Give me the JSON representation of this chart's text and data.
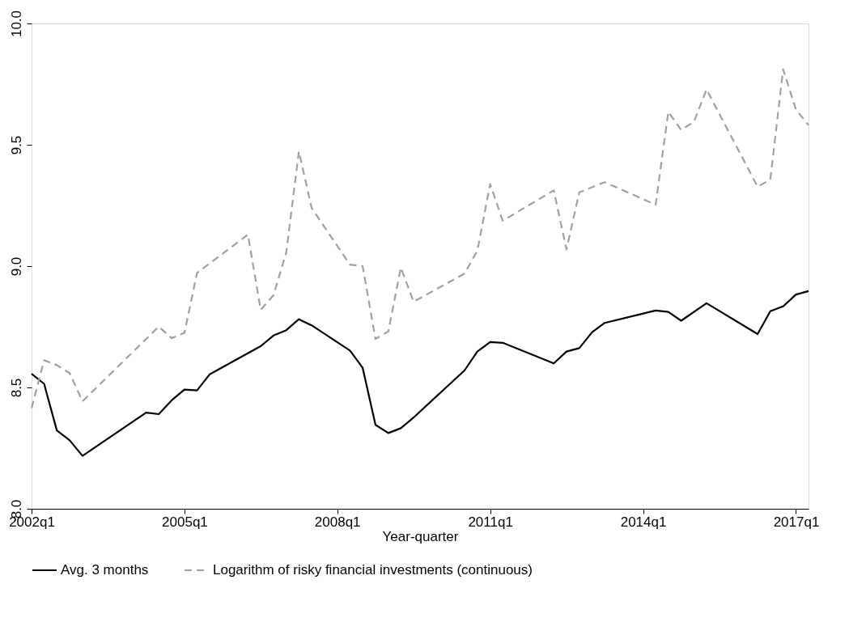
{
  "chart_data": {
    "type": "line",
    "xlabel": "Year-quarter",
    "xlim": [
      "2002-01",
      "2017-04"
    ],
    "xticks": [
      {
        "value": "2002-01",
        "label": "2002q1"
      },
      {
        "value": "2005-01",
        "label": "2005q1"
      },
      {
        "value": "2008-01",
        "label": "2008q1"
      },
      {
        "value": "2011-01",
        "label": "2011q1"
      },
      {
        "value": "2014-01",
        "label": "2014q1"
      },
      {
        "value": "2017-01",
        "label": "2017q1"
      }
    ],
    "ylim": [
      8,
      10
    ],
    "yticks": [
      {
        "value": 8,
        "label": "8.0"
      },
      {
        "value": 8.5,
        "label": "8.5"
      },
      {
        "value": 9,
        "label": "9.0"
      },
      {
        "value": 9.5,
        "label": "9.5"
      },
      {
        "value": 10,
        "label": "10.0"
      }
    ],
    "grid": false,
    "legend": "bottom",
    "marker": "none",
    "series": [
      {
        "name": "Avg. 3 months",
        "color": "#000000",
        "line_style": "solid",
        "x": [
          "2002-01",
          "2002-04",
          "2002-07",
          "2002-10",
          "2003-01",
          "2004-04",
          "2004-07",
          "2004-10",
          "2005-01",
          "2005-04",
          "2005-07",
          "2006-07",
          "2006-10",
          "2007-01",
          "2007-04",
          "2007-07",
          "2008-04",
          "2008-07",
          "2008-10",
          "2009-01",
          "2009-04",
          "2009-07",
          "2010-07",
          "2010-10",
          "2011-01",
          "2011-04",
          "2012-04",
          "2012-07",
          "2012-10",
          "2013-01",
          "2013-04",
          "2014-04",
          "2014-07",
          "2014-10",
          "2015-04",
          "2016-04",
          "2016-07",
          "2016-10",
          "2017-01",
          "2017-04"
        ],
        "values": [
          8.556,
          8.515,
          8.323,
          8.282,
          8.218,
          8.396,
          8.39,
          8.447,
          8.491,
          8.488,
          8.554,
          8.67,
          8.714,
          8.736,
          8.781,
          8.756,
          8.652,
          8.581,
          8.346,
          8.312,
          8.332,
          8.376,
          8.57,
          8.648,
          8.687,
          8.684,
          8.599,
          8.648,
          8.662,
          8.728,
          8.766,
          8.817,
          8.811,
          8.775,
          8.847,
          8.72,
          8.814,
          8.834,
          8.883,
          8.897
        ]
      },
      {
        "name": "Logarithm of risky financial investments (continuous)",
        "color": "#a0a0a0",
        "line_style": "dashed",
        "x": [
          "2002-01",
          "2002-04",
          "2002-07",
          "2002-10",
          "2003-01",
          "2004-07",
          "2004-10",
          "2005-01",
          "2005-04",
          "2006-04",
          "2006-07",
          "2006-10",
          "2007-01",
          "2007-04",
          "2007-07",
          "2008-04",
          "2008-07",
          "2008-10",
          "2009-01",
          "2009-04",
          "2009-07",
          "2010-07",
          "2010-10",
          "2011-01",
          "2011-04",
          "2012-04",
          "2012-07",
          "2012-10",
          "2013-04",
          "2014-04",
          "2014-07",
          "2014-10",
          "2015-01",
          "2015-04",
          "2016-04",
          "2016-07",
          "2016-10",
          "2017-01",
          "2017-04"
        ],
        "values": [
          8.415,
          8.612,
          8.592,
          8.559,
          8.443,
          8.751,
          8.703,
          8.725,
          8.972,
          9.13,
          8.82,
          8.88,
          9.057,
          9.473,
          9.24,
          9.006,
          9.0,
          8.7,
          8.731,
          8.994,
          8.853,
          8.969,
          9.063,
          9.338,
          9.187,
          9.312,
          9.069,
          9.304,
          9.346,
          9.253,
          9.636,
          9.561,
          9.595,
          9.728,
          9.327,
          9.357,
          9.811,
          9.645,
          9.581
        ]
      }
    ]
  }
}
